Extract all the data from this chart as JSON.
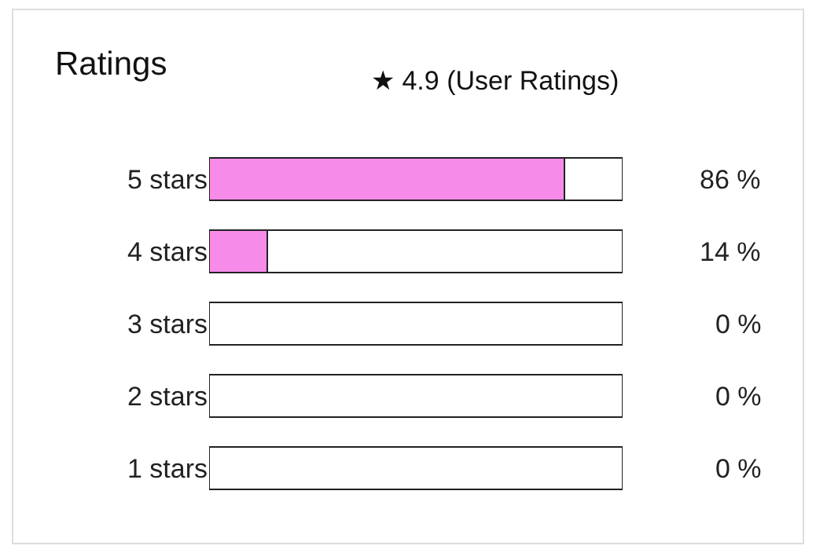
{
  "chart_data": {
    "type": "bar",
    "orientation": "horizontal",
    "stacked": true,
    "title": "Ratings",
    "subtitle": "★ 4.9 (User Ratings)",
    "categories": [
      "5 stars",
      "4 stars",
      "3 stars",
      "2 stars",
      "1 stars"
    ],
    "series": [
      {
        "color": "#f78bea",
        "values": [
          86,
          14,
          0,
          0,
          0
        ],
        "value_labels": [
          "86 %",
          "14 %",
          "0 %",
          "0 %",
          "0 %"
        ]
      },
      {
        "color": "#ffffff",
        "values": [
          14,
          86,
          100,
          100,
          100
        ]
      }
    ],
    "xlim": [
      0,
      100
    ],
    "tick_labels": "y"
  }
}
